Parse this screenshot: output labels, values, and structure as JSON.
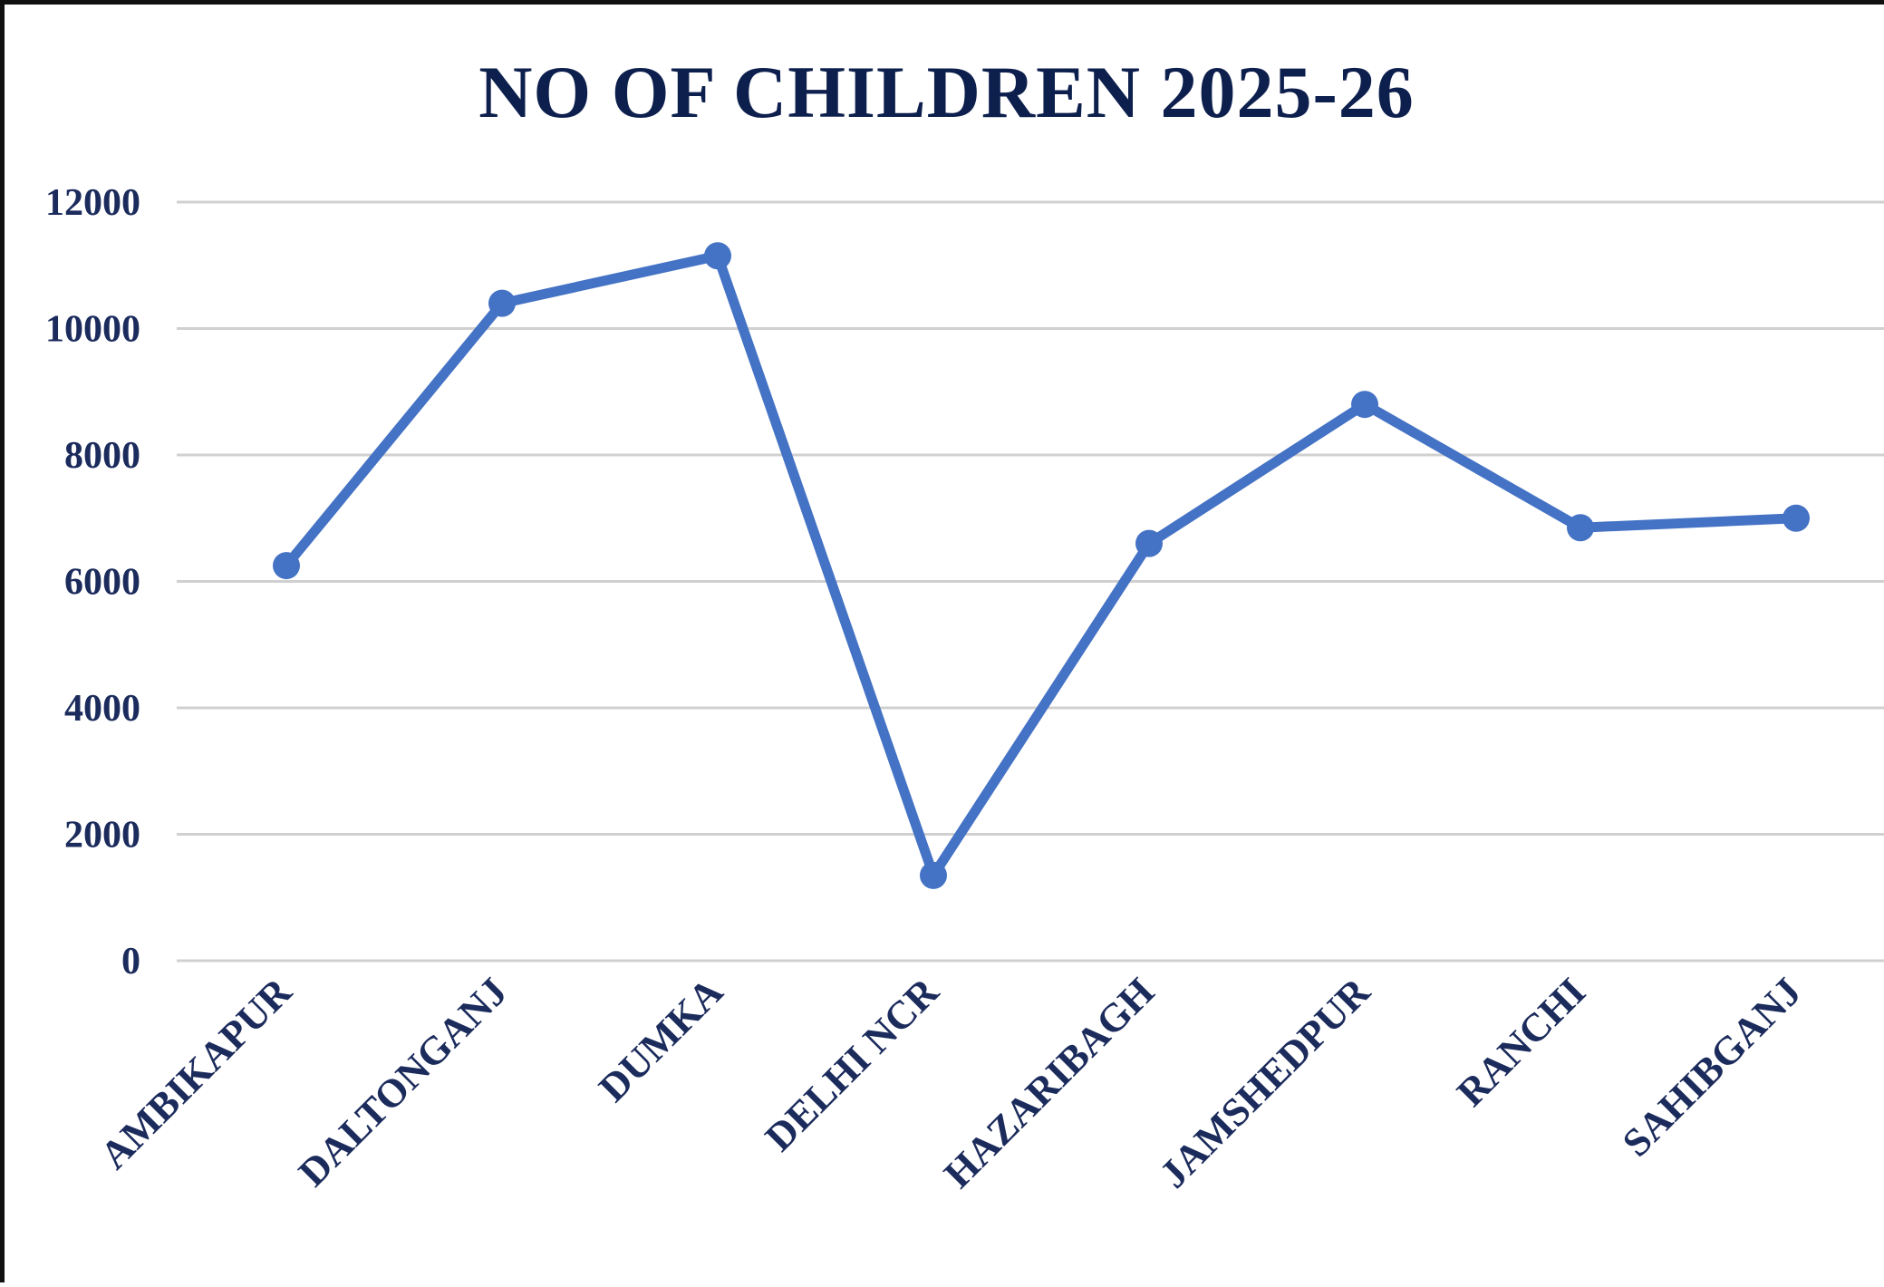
{
  "chart_data": {
    "type": "line",
    "title": "NO OF CHILDREN 2025-26",
    "categories": [
      "AMBIKAPUR",
      "DALTONGANJ",
      "DUMKA",
      "DELHI NCR",
      "HAZARIBAGH",
      "JAMSHEDPUR",
      "RANCHI",
      "SAHIBGANJ"
    ],
    "series": [
      {
        "values": [
          6250,
          10400,
          11150,
          1350,
          6600,
          8800,
          6850,
          7000
        ]
      }
    ],
    "ylim": [
      0,
      12000
    ],
    "yticks": [
      "0",
      "2000",
      "4000",
      "6000",
      "8000",
      "10000",
      "12000"
    ],
    "grid": true,
    "line_color": "#4472c4",
    "grid_color": "#d0d0d0",
    "text_color": "#1b2b5c"
  }
}
